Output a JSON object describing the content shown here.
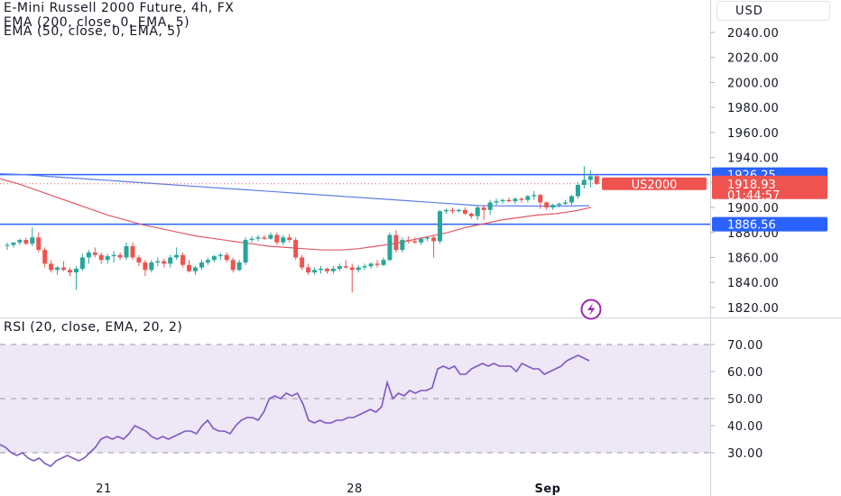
{
  "header": {
    "symbol_line": "E-Mini Russell 2000 Future, 4h, FX",
    "ema200_line": "EMA (200, close, 0, EMA, 5)",
    "ema50_line": "EMA (50, close, 0, EMA, 5)",
    "currency": "USD"
  },
  "rsi_header": "RSI (20, close, EMA, 20, 2)",
  "colors": {
    "up": "#26a69a",
    "down": "#ef5350",
    "level_line": "#2962ff",
    "ema200": "#5b7ee5",
    "ema50": "#e05a67",
    "rsi_line": "#7e57c2",
    "rsi_band": "#ede7f6"
  },
  "price_tags": {
    "upper_level": "1926.25",
    "lower_level": "1886.56",
    "symbol": "US2000",
    "last_price": "1918.93",
    "countdown": "01:44:57"
  },
  "chart_data": [
    {
      "type": "candlestick",
      "yaxis_ticks": [
        "2040.00",
        "2020.00",
        "2000.00",
        "1980.00",
        "1960.00",
        "1940.00",
        "1920.00",
        "1900.00",
        "1880.00",
        "1860.00",
        "1840.00",
        "1820.00"
      ],
      "xaxis_ticks": [
        "21",
        "28",
        "Sep"
      ],
      "horizontal_levels": [
        1926.25,
        1886.56
      ],
      "candles": [
        [
          1870,
          1872,
          1866,
          1870
        ],
        [
          1870,
          1872,
          1868,
          1872
        ],
        [
          1872,
          1875,
          1870,
          1874
        ],
        [
          1874,
          1876,
          1870,
          1871
        ],
        [
          1871,
          1884,
          1869,
          1876
        ],
        [
          1876,
          1880,
          1864,
          1866
        ],
        [
          1866,
          1868,
          1852,
          1855
        ],
        [
          1855,
          1858,
          1848,
          1850
        ],
        [
          1850,
          1853,
          1846,
          1852
        ],
        [
          1852,
          1857,
          1849,
          1850
        ],
        [
          1850,
          1852,
          1845,
          1848
        ],
        [
          1848,
          1853,
          1834,
          1851
        ],
        [
          1851,
          1863,
          1849,
          1860
        ],
        [
          1860,
          1866,
          1855,
          1864
        ],
        [
          1864,
          1868,
          1860,
          1862
        ],
        [
          1862,
          1864,
          1855,
          1858
        ],
        [
          1858,
          1863,
          1855,
          1861
        ],
        [
          1861,
          1865,
          1856,
          1862
        ],
        [
          1862,
          1864,
          1858,
          1860
        ],
        [
          1860,
          1872,
          1858,
          1869
        ],
        [
          1869,
          1872,
          1858,
          1860
        ],
        [
          1860,
          1862,
          1853,
          1856
        ],
        [
          1856,
          1858,
          1845,
          1850
        ],
        [
          1850,
          1858,
          1848,
          1856
        ],
        [
          1856,
          1860,
          1853,
          1857
        ],
        [
          1857,
          1859,
          1852,
          1855
        ],
        [
          1855,
          1862,
          1852,
          1860
        ],
        [
          1860,
          1868,
          1858,
          1862
        ],
        [
          1862,
          1864,
          1852,
          1854
        ],
        [
          1854,
          1858,
          1848,
          1849
        ],
        [
          1849,
          1853,
          1846,
          1852
        ],
        [
          1852,
          1858,
          1850,
          1856
        ],
        [
          1856,
          1860,
          1854,
          1858
        ],
        [
          1858,
          1862,
          1856,
          1861
        ],
        [
          1861,
          1864,
          1858,
          1862
        ],
        [
          1862,
          1864,
          1856,
          1858
        ],
        [
          1858,
          1860,
          1848,
          1850
        ],
        [
          1850,
          1858,
          1849,
          1856
        ],
        [
          1856,
          1876,
          1854,
          1874
        ],
        [
          1874,
          1877,
          1872,
          1875
        ],
        [
          1875,
          1878,
          1873,
          1876
        ],
        [
          1876,
          1878,
          1874,
          1875
        ],
        [
          1875,
          1880,
          1874,
          1878
        ],
        [
          1878,
          1880,
          1870,
          1872
        ],
        [
          1872,
          1878,
          1870,
          1876
        ],
        [
          1876,
          1879,
          1872,
          1874
        ],
        [
          1874,
          1876,
          1858,
          1860
        ],
        [
          1860,
          1862,
          1850,
          1852
        ],
        [
          1852,
          1855,
          1846,
          1848
        ],
        [
          1848,
          1852,
          1846,
          1850
        ],
        [
          1850,
          1853,
          1847,
          1851
        ],
        [
          1851,
          1852,
          1847,
          1849
        ],
        [
          1849,
          1853,
          1847,
          1851
        ],
        [
          1851,
          1855,
          1849,
          1853
        ],
        [
          1853,
          1858,
          1851,
          1852
        ],
        [
          1852,
          1855,
          1832,
          1850
        ],
        [
          1850,
          1854,
          1848,
          1852
        ],
        [
          1852,
          1855,
          1850,
          1853
        ],
        [
          1853,
          1856,
          1851,
          1855
        ],
        [
          1855,
          1858,
          1852,
          1854
        ],
        [
          1854,
          1860,
          1853,
          1858
        ],
        [
          1858,
          1880,
          1857,
          1878
        ],
        [
          1878,
          1882,
          1864,
          1866
        ],
        [
          1866,
          1876,
          1864,
          1874
        ],
        [
          1874,
          1877,
          1871,
          1873
        ],
        [
          1873,
          1876,
          1871,
          1872
        ],
        [
          1872,
          1876,
          1870,
          1875
        ],
        [
          1875,
          1877,
          1873,
          1876
        ],
        [
          1876,
          1878,
          1860,
          1873
        ],
        [
          1873,
          1898,
          1871,
          1897
        ],
        [
          1897,
          1899,
          1895,
          1898
        ],
        [
          1898,
          1900,
          1895,
          1897
        ],
        [
          1897,
          1899,
          1896,
          1898
        ],
        [
          1898,
          1900,
          1894,
          1895
        ],
        [
          1895,
          1896,
          1891,
          1893
        ],
        [
          1893,
          1901,
          1890,
          1900
        ],
        [
          1900,
          1902,
          1890,
          1898
        ],
        [
          1898,
          1906,
          1894,
          1904
        ],
        [
          1904,
          1907,
          1902,
          1905
        ],
        [
          1905,
          1907,
          1903,
          1906
        ],
        [
          1906,
          1908,
          1904,
          1905
        ],
        [
          1905,
          1908,
          1903,
          1907
        ],
        [
          1907,
          1908,
          1904,
          1906
        ],
        [
          1906,
          1910,
          1904,
          1909
        ],
        [
          1909,
          1913,
          1906,
          1910
        ],
        [
          1910,
          1911,
          1899,
          1904
        ],
        [
          1904,
          1905,
          1898,
          1900
        ],
        [
          1900,
          1903,
          1898,
          1902
        ],
        [
          1902,
          1904,
          1900,
          1903
        ],
        [
          1903,
          1906,
          1902,
          1904
        ],
        [
          1904,
          1910,
          1902,
          1909
        ],
        [
          1909,
          1920,
          1907,
          1918
        ],
        [
          1918,
          1933,
          1915,
          1922
        ],
        [
          1922,
          1930,
          1916,
          1925
        ],
        [
          1925,
          1926,
          1918,
          1918.93
        ]
      ],
      "ema200": [
        1927,
        1926.5,
        1925.5,
        1924.5,
        1923.5,
        1922.5,
        1921.5,
        1920.5,
        1919.5,
        1918.5,
        1917.5,
        1916.5,
        1915.5,
        1914.5,
        1913.5,
        1912.5,
        1911.5,
        1910.5,
        1909.5,
        1908.5,
        1907.5,
        1906.5,
        1905.5,
        1904.5,
        1903.5,
        1902.5,
        1901.5,
        1901.3,
        1901.2,
        1901.1,
        1901.1,
        1901.2,
        1901.5
      ],
      "ema50": [
        1923,
        1919,
        1914,
        1909,
        1904,
        1899,
        1894,
        1890,
        1886,
        1883,
        1880,
        1877,
        1875,
        1873,
        1871,
        1869,
        1868,
        1867,
        1866,
        1866,
        1867,
        1869,
        1871,
        1874,
        1877,
        1880,
        1884,
        1887,
        1890,
        1892,
        1894,
        1895,
        1897,
        1900
      ]
    },
    {
      "type": "line",
      "name": "RSI (20, close, EMA, 20, 2)",
      "yaxis_ticks": [
        "70.00",
        "60.00",
        "50.00",
        "40.00",
        "30.00"
      ],
      "band": [
        30,
        70
      ],
      "values": [
        33,
        32,
        30,
        29,
        30,
        28,
        27,
        28,
        26,
        25,
        27,
        28,
        29,
        28,
        27,
        28,
        30,
        32,
        35,
        36,
        35,
        36,
        35,
        37,
        40,
        39,
        38,
        36,
        35,
        36,
        35,
        36,
        37,
        38,
        38,
        37,
        40,
        42,
        39,
        38,
        38,
        37,
        40,
        42,
        43,
        43,
        42,
        45,
        50,
        51,
        50,
        52,
        51,
        52,
        48,
        42,
        41,
        42,
        41,
        41,
        42,
        42,
        43,
        43,
        44,
        45,
        46,
        45,
        47,
        56,
        50,
        52,
        51,
        53,
        52,
        53,
        53,
        54,
        61,
        62,
        61,
        62,
        59,
        59,
        61,
        62,
        63,
        62,
        63,
        62,
        62,
        62,
        60,
        63,
        62,
        61,
        61,
        59,
        60,
        61,
        62,
        64,
        65,
        66,
        65,
        64
      ]
    }
  ]
}
